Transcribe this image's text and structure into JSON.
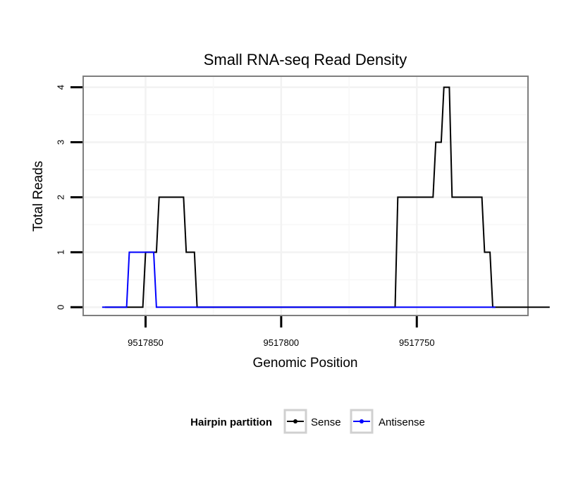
{
  "chart_data": {
    "type": "line",
    "title": "Small RNA-seq Read Density",
    "xlabel": "Genomic Position",
    "ylabel": "Total Reads",
    "x_reversed": true,
    "xlim": [
      9517873,
      9517709
    ],
    "ylim": [
      -0.15,
      4.2
    ],
    "xticks": [
      9517850,
      9517800,
      9517750
    ],
    "xtick_labels": [
      "9517850",
      "9517800",
      "9517750"
    ],
    "yticks": [
      0,
      1,
      2,
      3,
      4
    ],
    "ytick_labels": [
      "0",
      "1",
      "2",
      "3",
      "4"
    ],
    "grid": true,
    "legend": {
      "title": "Hairpin partition",
      "position": "bottom",
      "entries": [
        "Sense",
        "Antisense"
      ]
    },
    "series": [
      {
        "name": "Sense",
        "color": "#000000",
        "x": [
          9517865,
          9517851,
          9517850,
          9517846,
          9517845,
          9517836,
          9517835,
          9517832,
          9517831,
          9517827,
          9517826,
          9517758,
          9517757,
          9517744,
          9517743,
          9517741,
          9517740,
          9517738,
          9517737,
          9517726,
          9517725,
          9517723,
          9517722,
          9517701
        ],
        "y": [
          0,
          0,
          1,
          1,
          2,
          2,
          1,
          1,
          0,
          0,
          0,
          0,
          2,
          2,
          3,
          3,
          4,
          4,
          2,
          2,
          1,
          1,
          0,
          0
        ]
      },
      {
        "name": "Antisense",
        "color": "#0000ff",
        "x": [
          9517866,
          9517857,
          9517856,
          9517847,
          9517846,
          9517827,
          9517721
        ],
        "y": [
          0,
          0,
          1,
          1,
          0,
          0,
          0
        ]
      }
    ]
  }
}
